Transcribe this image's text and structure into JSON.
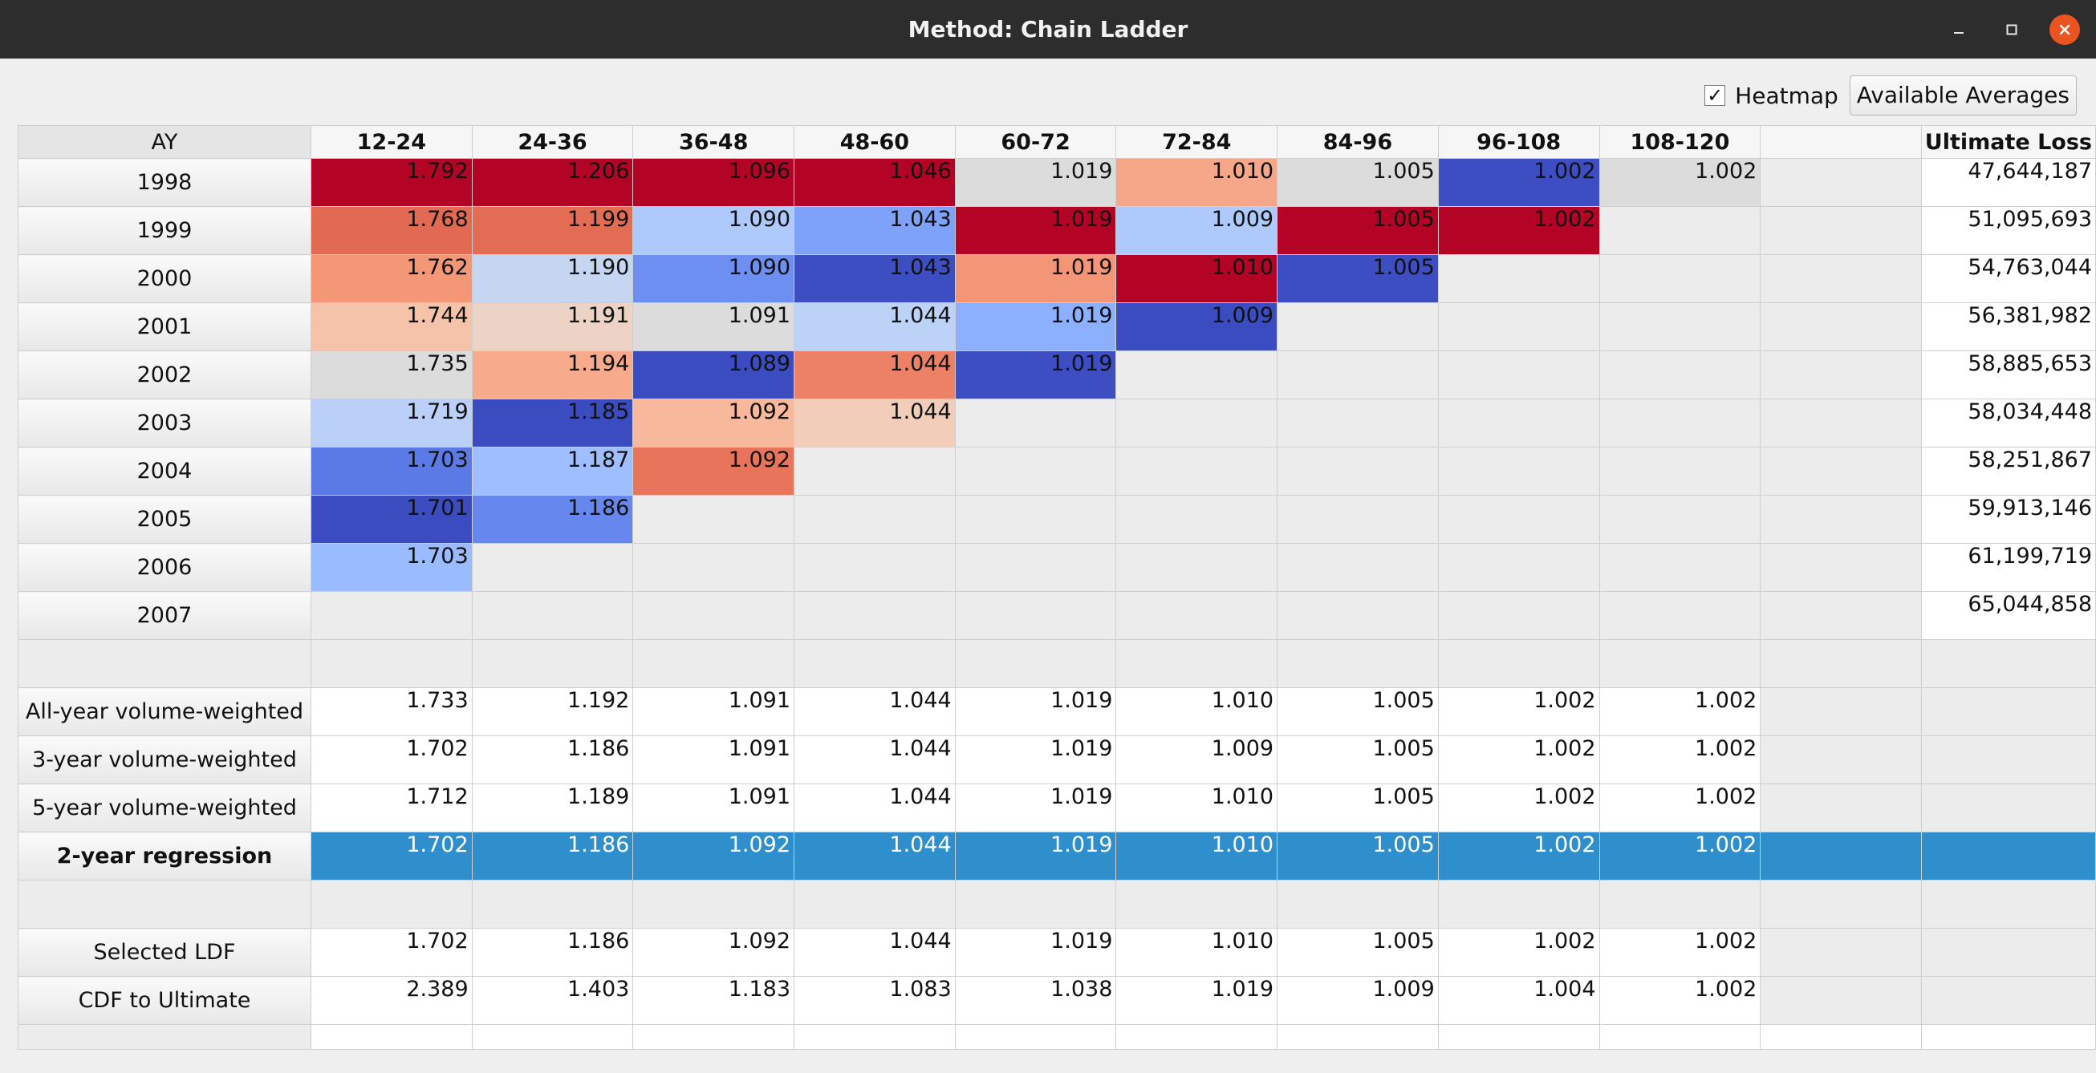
{
  "window": {
    "title": "Method: Chain Ladder",
    "controls": [
      "minimize-icon",
      "maximize-icon",
      "close-icon"
    ]
  },
  "toolbar": {
    "heatmap_label": "Heatmap",
    "heatmap_checked": true,
    "check_mark": "✓",
    "averages_button": "Available Averages"
  },
  "table": {
    "corner_label": "AY",
    "columns": [
      "12-24",
      "24-36",
      "36-48",
      "48-60",
      "60-72",
      "72-84",
      "84-96",
      "96-108",
      "108-120",
      "",
      "Ultimate Loss"
    ],
    "triangle": [
      {
        "ay": "1998",
        "values": [
          "1.792",
          "1.206",
          "1.096",
          "1.046",
          "1.019",
          "1.010",
          "1.005",
          "1.002",
          "1.002"
        ],
        "ultimate": "47,644,187"
      },
      {
        "ay": "1999",
        "values": [
          "1.768",
          "1.199",
          "1.090",
          "1.043",
          "1.019",
          "1.009",
          "1.005",
          "1.002"
        ],
        "ultimate": "51,095,693"
      },
      {
        "ay": "2000",
        "values": [
          "1.762",
          "1.190",
          "1.090",
          "1.043",
          "1.019",
          "1.010",
          "1.005"
        ],
        "ultimate": "54,763,044"
      },
      {
        "ay": "2001",
        "values": [
          "1.744",
          "1.191",
          "1.091",
          "1.044",
          "1.019",
          "1.009"
        ],
        "ultimate": "56,381,982"
      },
      {
        "ay": "2002",
        "values": [
          "1.735",
          "1.194",
          "1.089",
          "1.044",
          "1.019"
        ],
        "ultimate": "58,885,653"
      },
      {
        "ay": "2003",
        "values": [
          "1.719",
          "1.185",
          "1.092",
          "1.044"
        ],
        "ultimate": "58,034,448"
      },
      {
        "ay": "2004",
        "values": [
          "1.703",
          "1.187",
          "1.092"
        ],
        "ultimate": "58,251,867"
      },
      {
        "ay": "2005",
        "values": [
          "1.701",
          "1.186"
        ],
        "ultimate": "59,913,146"
      },
      {
        "ay": "2006",
        "values": [
          "1.703"
        ],
        "ultimate": "61,199,719"
      },
      {
        "ay": "2007",
        "values": [],
        "ultimate": "65,044,858"
      }
    ],
    "heat_colors": [
      [
        "#b40426",
        "#b40426",
        "#b40426",
        "#b40426",
        "#dddcdc",
        "#f6a789",
        "#dddcdc",
        "#3c4ec2",
        "#dddcdc"
      ],
      [
        "#e26952",
        "#e36c55",
        "#aec9fc",
        "#7ea1fa",
        "#b40426",
        "#aec9fc",
        "#b40426",
        "#b40426"
      ],
      [
        "#f39777",
        "#c6d6f1",
        "#6c8ff1",
        "#3c4ec2",
        "#f39577",
        "#b40426",
        "#3c4ec2"
      ],
      [
        "#f5c2aa",
        "#ecd3c5",
        "#dddcdc",
        "#bcd2f7",
        "#8caffe",
        "#3b4cc0"
      ],
      [
        "#dddcdc",
        "#f7aa8c",
        "#3b4cc0",
        "#ec8165",
        "#3c4ec2"
      ],
      [
        "#bad0f8",
        "#3b4cc0",
        "#f7b89c",
        "#f1cdba"
      ],
      [
        "#5b7ae5",
        "#9ebeff",
        "#e7745b"
      ],
      [
        "#3b4cc0",
        "#6687ed"
      ],
      [
        "#9abbff"
      ],
      []
    ],
    "averages": [
      {
        "label": "All-year volume-weighted",
        "values": [
          "1.733",
          "1.192",
          "1.091",
          "1.044",
          "1.019",
          "1.010",
          "1.005",
          "1.002",
          "1.002"
        ],
        "selected": false
      },
      {
        "label": "3-year volume-weighted",
        "values": [
          "1.702",
          "1.186",
          "1.091",
          "1.044",
          "1.019",
          "1.009",
          "1.005",
          "1.002",
          "1.002"
        ],
        "selected": false
      },
      {
        "label": "5-year volume-weighted",
        "values": [
          "1.712",
          "1.189",
          "1.091",
          "1.044",
          "1.019",
          "1.010",
          "1.005",
          "1.002",
          "1.002"
        ],
        "selected": false
      },
      {
        "label": "2-year regression",
        "values": [
          "1.702",
          "1.186",
          "1.092",
          "1.044",
          "1.019",
          "1.010",
          "1.005",
          "1.002",
          "1.002"
        ],
        "selected": true
      }
    ],
    "summary": [
      {
        "label": "Selected LDF",
        "values": [
          "1.702",
          "1.186",
          "1.092",
          "1.044",
          "1.019",
          "1.010",
          "1.005",
          "1.002",
          "1.002"
        ]
      },
      {
        "label": "CDF to Ultimate",
        "values": [
          "2.389",
          "1.403",
          "1.183",
          "1.083",
          "1.038",
          "1.019",
          "1.009",
          "1.004",
          "1.002"
        ]
      }
    ],
    "selection_color": "#2f8fcc"
  }
}
